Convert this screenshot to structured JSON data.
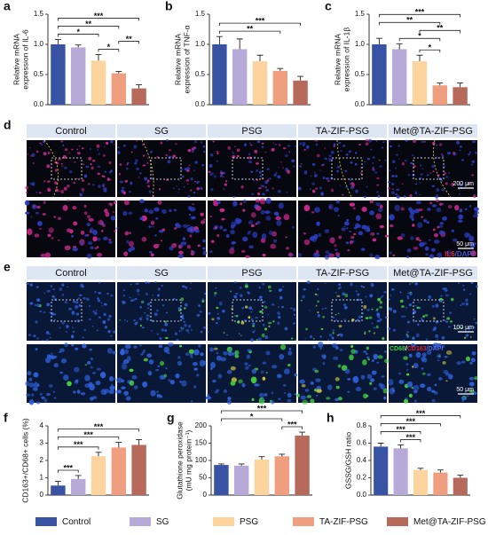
{
  "chart_data": [
    {
      "type": "bar",
      "panel": "a",
      "ylabel": [
        "Relative mRNA",
        "expression of IL-6"
      ],
      "ylim": [
        0,
        1.5
      ],
      "yticks": [
        {
          "value": 0,
          "label": "0.0"
        },
        0.5,
        {
          "value": 1,
          "label": "1.0"
        },
        1.5
      ],
      "values": [
        1.0,
        0.95,
        0.73,
        0.52,
        0.27
      ],
      "errors": [
        0.08,
        0.04,
        0.1,
        0.03,
        0.06
      ],
      "significance": [
        {
          "between": [
            "Control",
            "Met@TA-ZIF-PSG"
          ],
          "label": "***"
        },
        {
          "between": [
            "Control",
            "TA-ZIF-PSG"
          ],
          "label": "**"
        },
        {
          "between": [
            "Control",
            "PSG"
          ],
          "label": "*"
        },
        {
          "between": [
            "PSG",
            "TA-ZIF-PSG"
          ],
          "label": "*"
        },
        {
          "between": [
            "TA-ZIF-PSG",
            "Met@TA-ZIF-PSG"
          ],
          "label": "**"
        }
      ]
    },
    {
      "type": "bar",
      "panel": "b",
      "ylabel": [
        "Relative mRNA",
        "expression of TNF-α"
      ],
      "ylim": [
        0,
        1.5
      ],
      "yticks": [
        {
          "value": 0,
          "label": "0.0"
        },
        0.5,
        {
          "value": 1,
          "label": "1.0"
        },
        1.5
      ],
      "values": [
        1.0,
        0.92,
        0.72,
        0.56,
        0.4
      ],
      "errors": [
        0.13,
        0.17,
        0.1,
        0.04,
        0.07
      ],
      "significance": [
        {
          "between": [
            "Control",
            "Met@TA-ZIF-PSG"
          ],
          "label": "***"
        },
        {
          "between": [
            "Control",
            "TA-ZIF-PSG"
          ],
          "label": "**"
        }
      ]
    },
    {
      "type": "bar",
      "panel": "c",
      "ylabel": [
        "Relative mRNA",
        "expression of IL-1β"
      ],
      "ylim": [
        0,
        1.5
      ],
      "yticks": [
        {
          "value": 0,
          "label": "0.0"
        },
        0.5,
        {
          "value": 1,
          "label": "1.0"
        },
        1.5
      ],
      "values": [
        1.0,
        0.92,
        0.72,
        0.32,
        0.29
      ],
      "errors": [
        0.1,
        0.09,
        0.1,
        0.04,
        0.07
      ],
      "significance": [
        {
          "between": [
            "Control",
            "Met@TA-ZIF-PSG"
          ],
          "label": "***"
        },
        {
          "between": [
            "Control",
            "TA-ZIF-PSG"
          ],
          "label": "**"
        },
        {
          "between": [
            "SG",
            "TA-ZIF-PSG"
          ],
          "label": "*"
        },
        {
          "between": [
            "PSG",
            "TA-ZIF-PSG"
          ],
          "label": "*"
        },
        {
          "between": [
            "PSG",
            "Met@TA-ZIF-PSG"
          ],
          "label": "**"
        }
      ]
    },
    {
      "type": "bar",
      "panel": "f",
      "ylabel": [
        "CD163+/CD68+ cells (%)"
      ],
      "ylim": [
        0,
        4
      ],
      "yticks": [
        0,
        1,
        2,
        3,
        4
      ],
      "values": [
        0.55,
        0.93,
        2.25,
        2.75,
        2.9
      ],
      "errors": [
        0.25,
        0.2,
        0.22,
        0.3,
        0.3
      ],
      "significance": [
        {
          "between": [
            "Control",
            "Met@TA-ZIF-PSG"
          ],
          "label": "***"
        },
        {
          "between": [
            "Control",
            "TA-ZIF-PSG"
          ],
          "label": "***"
        },
        {
          "between": [
            "Control",
            "PSG"
          ],
          "label": "***"
        },
        {
          "between": [
            "Control",
            "SG"
          ],
          "label": "***"
        }
      ]
    },
    {
      "type": "bar",
      "panel": "g",
      "ylabel": [
        "Glutathione peroxidase",
        "(mU mg protein⁻¹)"
      ],
      "ylim": [
        0,
        200
      ],
      "yticks": [
        0,
        50,
        100,
        150,
        200
      ],
      "values": [
        87,
        85,
        103,
        112,
        172
      ],
      "errors": [
        3,
        5,
        8,
        6,
        10
      ],
      "significance": [
        {
          "between": [
            "Control",
            "Met@TA-ZIF-PSG"
          ],
          "label": "***"
        },
        {
          "between": [
            "TA-ZIF-PSG",
            "Met@TA-ZIF-PSG"
          ],
          "label": "***"
        },
        {
          "between": [
            "Control",
            "TA-ZIF-PSG"
          ],
          "label": "*"
        }
      ]
    },
    {
      "type": "bar",
      "panel": "h",
      "ylabel": [
        "GSSG/GSH ratio"
      ],
      "ylim": [
        0,
        0.8
      ],
      "yticks": [
        {
          "value": 0,
          "label": "0.0"
        },
        0.2,
        0.4,
        0.6,
        0.8
      ],
      "values": [
        0.56,
        0.54,
        0.29,
        0.26,
        0.2
      ],
      "errors": [
        0.04,
        0.04,
        0.02,
        0.03,
        0.03
      ],
      "significance": [
        {
          "between": [
            "Control",
            "Met@TA-ZIF-PSG"
          ],
          "label": "***"
        },
        {
          "between": [
            "Control",
            "TA-ZIF-PSG"
          ],
          "label": "***"
        },
        {
          "between": [
            "Control",
            "PSG"
          ],
          "label": "***"
        },
        {
          "between": [
            "SG",
            "PSG"
          ],
          "label": "***"
        }
      ]
    }
  ],
  "legend": {
    "items": [
      {
        "name": "Control",
        "color": "#3953a4"
      },
      {
        "name": "SG",
        "color": "#b7a9d8"
      },
      {
        "name": "PSG",
        "color": "#fdd49e"
      },
      {
        "name": "TA-ZIF-PSG",
        "color": "#ef9f7f"
      },
      {
        "name": "Met@TA-ZIF-PSG",
        "color": "#b76a5c"
      }
    ]
  },
  "image_panels": [
    {
      "panel": "d",
      "columns": [
        "Control",
        "SG",
        "PSG",
        "TA-ZIF-PSG",
        "Met@TA-ZIF-PSG"
      ],
      "scale_bars": [
        "200 μm",
        "50 μm"
      ],
      "stain": [
        {
          "text": "IL6",
          "color": "#e8262b"
        },
        {
          "text": "/DAPI",
          "color": "#4157d0"
        }
      ]
    },
    {
      "panel": "e",
      "columns": [
        "Control",
        "SG",
        "PSG",
        "TA-ZIF-PSG",
        "Met@TA-ZIF-PSG"
      ],
      "scale_bars": [
        "100 μm",
        "50 μm"
      ],
      "stain": [
        {
          "text": "CD68",
          "color": "#3ccf3c"
        },
        {
          "text": "/",
          "color": "#ffffff"
        },
        {
          "text": "CD163",
          "color": "#e8262b"
        },
        {
          "text": "/DAPI",
          "color": "#4f6fe8"
        }
      ]
    }
  ]
}
